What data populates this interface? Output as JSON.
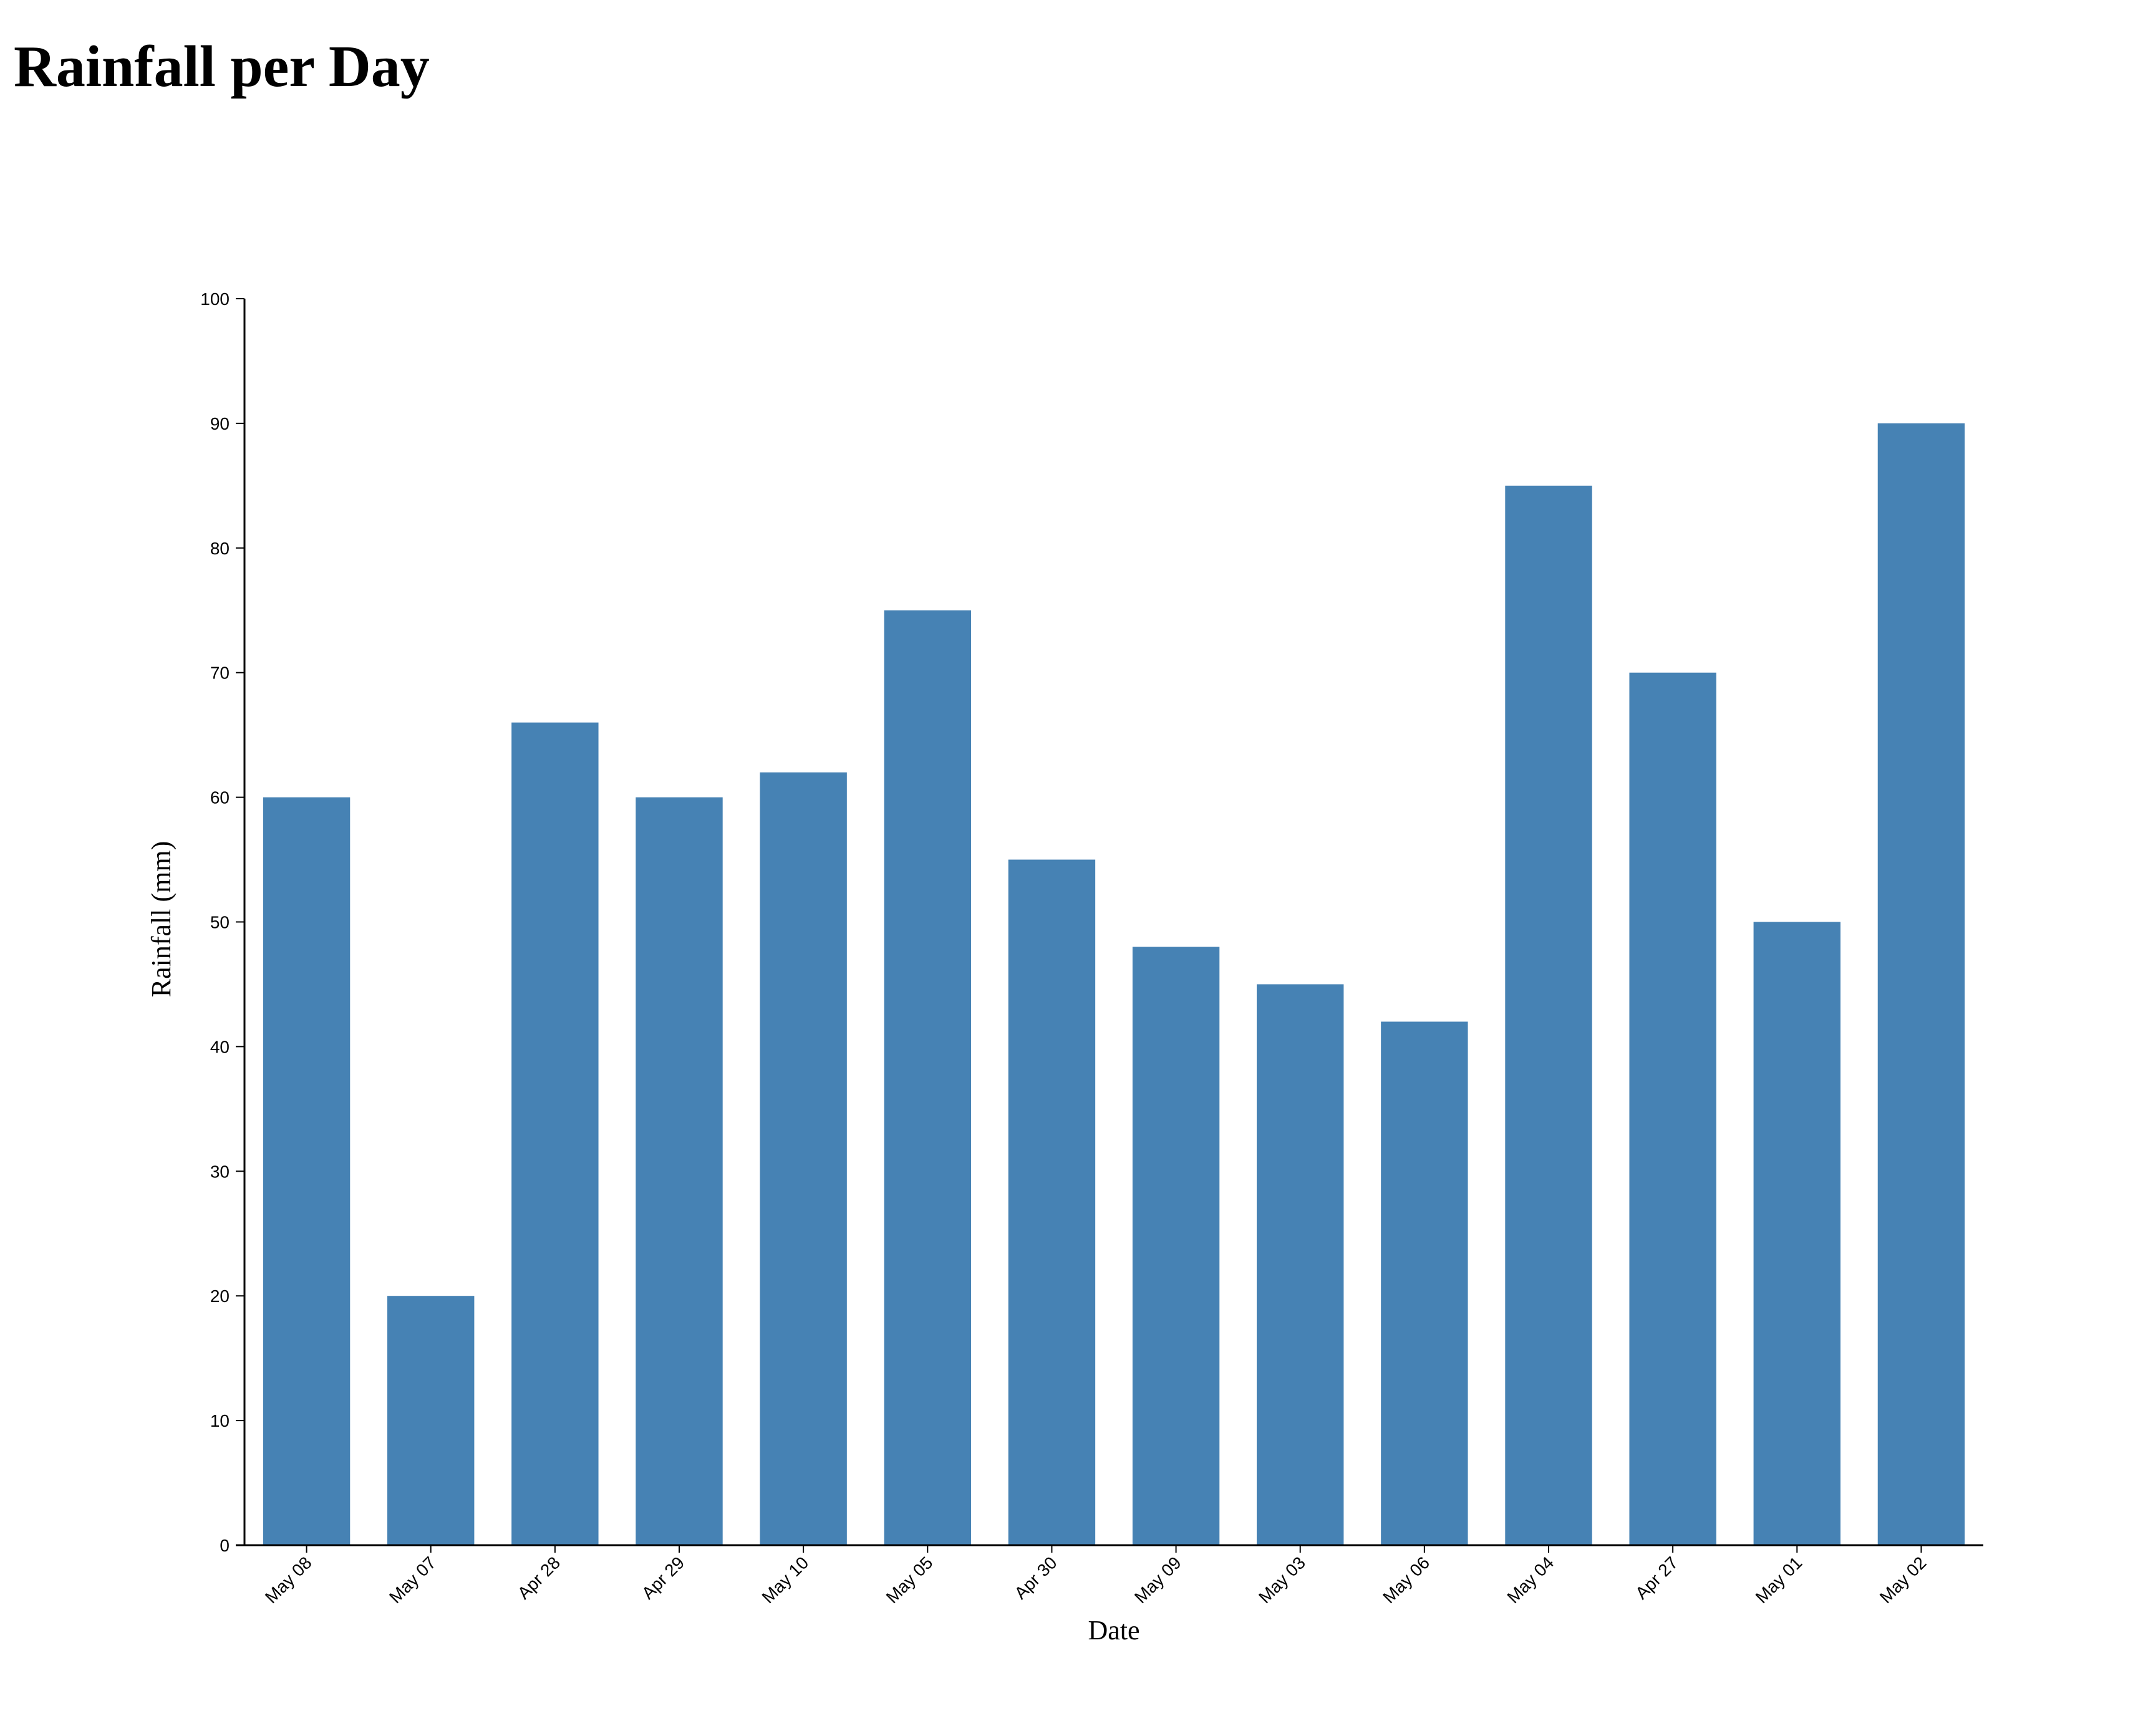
{
  "page": {
    "title": "Rainfall per Day"
  },
  "chart_data": {
    "type": "bar",
    "title": "Rainfall per Day",
    "xlabel": "Date",
    "ylabel": "Rainfall (mm)",
    "ylim": [
      0,
      100
    ],
    "yticks": [
      0,
      10,
      20,
      30,
      40,
      50,
      60,
      70,
      80,
      90,
      100
    ],
    "grid": false,
    "bar_color": "#4682b4",
    "categories": [
      "May 08",
      "May 07",
      "Apr 28",
      "Apr 29",
      "May 10",
      "May 05",
      "Apr 30",
      "May 09",
      "May 03",
      "May 06",
      "May 04",
      "Apr 27",
      "May 01",
      "May 02"
    ],
    "values": [
      60,
      20,
      66,
      60,
      62,
      75,
      55,
      48,
      45,
      42,
      85,
      70,
      50,
      90
    ]
  }
}
